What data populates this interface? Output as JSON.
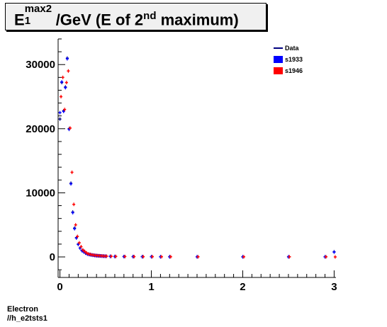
{
  "title": {
    "base": "E",
    "superscript": "max2",
    "subscript": "1",
    "unit_text": "/GeV (E of 2",
    "nd_sup": "nd",
    "tail": " maximum)"
  },
  "footer": {
    "line1": "Electron",
    "line2": "//h_e2tsts1"
  },
  "colors": {
    "data": "#000080",
    "s1933": "#0000ff",
    "s1946": "#ff0000"
  },
  "chart_data": {
    "type": "scatter",
    "title": "E1max2/GeV (E of 2nd maximum)",
    "xlabel": "",
    "ylabel": "",
    "xlim": [
      -0.02,
      3.02
    ],
    "ylim": [
      -3200,
      34000
    ],
    "x_ticks": [
      "0",
      "1",
      "2",
      "3"
    ],
    "y_ticks": [
      "0",
      "10000",
      "20000",
      "30000"
    ],
    "legend_position": "top-right",
    "x": [
      0.0,
      0.02,
      0.04,
      0.06,
      0.08,
      0.1,
      0.12,
      0.14,
      0.16,
      0.18,
      0.2,
      0.22,
      0.24,
      0.26,
      0.28,
      0.3,
      0.32,
      0.34,
      0.36,
      0.38,
      0.4,
      0.42,
      0.44,
      0.46,
      0.48,
      0.5,
      0.55,
      0.6,
      0.7,
      0.8,
      0.9,
      1.0,
      1.1,
      1.2,
      1.5,
      2.0,
      2.5,
      2.9,
      3.0
    ],
    "series": [
      {
        "name": "Data",
        "values": [
          21500,
          27200,
          22800,
          26500,
          31000,
          20000,
          11500,
          7000,
          4500,
          3000,
          2000,
          1400,
          1000,
          800,
          600,
          450,
          380,
          320,
          270,
          230,
          200,
          180,
          160,
          140,
          120,
          110,
          90,
          70,
          60,
          50,
          40,
          40,
          30,
          30,
          20,
          20,
          20,
          20,
          800
        ]
      },
      {
        "name": "s1933",
        "values": [
          22500,
          27300,
          22700,
          26400,
          30900,
          19900,
          11400,
          6900,
          4400,
          2950,
          1950,
          1380,
          980,
          790,
          590,
          440,
          370,
          310,
          260,
          220,
          190,
          170,
          150,
          130,
          110,
          100,
          85,
          65,
          55,
          45,
          35,
          35,
          25,
          25,
          20,
          20,
          20,
          20,
          750
        ]
      },
      {
        "name": "s1946",
        "values": [
          25000,
          28000,
          23000,
          27200,
          29000,
          20100,
          13200,
          8200,
          5000,
          3200,
          2200,
          1600,
          1100,
          850,
          620,
          470,
          400,
          330,
          280,
          240,
          210,
          190,
          165,
          145,
          125,
          115,
          95,
          75,
          62,
          52,
          42,
          42,
          32,
          32,
          22,
          22,
          22,
          22,
          0
        ]
      }
    ]
  }
}
